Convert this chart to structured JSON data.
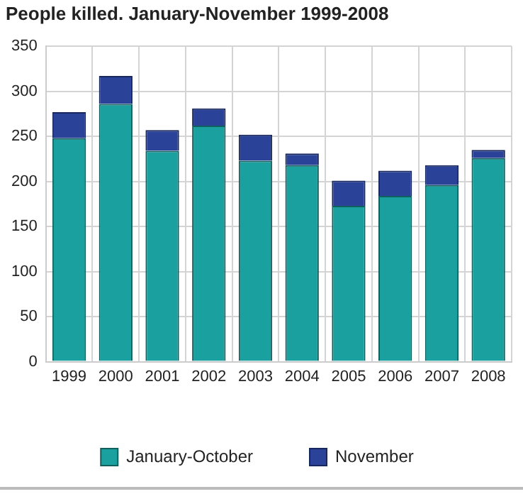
{
  "chart_data": {
    "type": "bar",
    "title": "People killed. January-November 1999-2008",
    "categories": [
      "1999",
      "2000",
      "2001",
      "2002",
      "2003",
      "2004",
      "2005",
      "2006",
      "2007",
      "2008"
    ],
    "stacked": true,
    "series": [
      {
        "name": "January-October",
        "color": "#1aa09e",
        "values": [
          248,
          286,
          234,
          262,
          223,
          218,
          173,
          184,
          196,
          226
        ]
      },
      {
        "name": "November",
        "color": "#2a4399",
        "values": [
          29,
          31,
          23,
          19,
          29,
          13,
          28,
          28,
          22,
          9
        ]
      }
    ],
    "ylim": [
      0,
      350
    ],
    "yticks": [
      0,
      50,
      100,
      150,
      200,
      250,
      300,
      350
    ],
    "grid": true,
    "legend": "bottom"
  }
}
